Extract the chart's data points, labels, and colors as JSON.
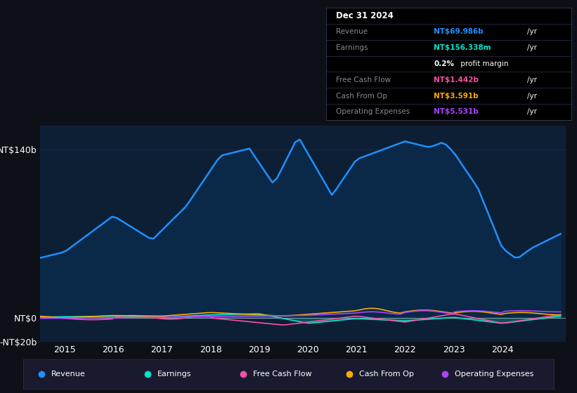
{
  "bg_color": "#0d1117",
  "plot_bg_color": "#0d1f35",
  "grid_color": "#1e3a5f",
  "ylabel_top": "NT$140b",
  "ylabel_zero": "NT$0",
  "ylabel_neg": "-NT$20b",
  "ylim": [
    -20,
    160
  ],
  "yticks": [
    -20,
    0,
    140
  ],
  "series": {
    "Revenue": {
      "color": "#1e90ff",
      "fill_color": "#0a2a4a",
      "linewidth": 1.8
    },
    "Earnings": {
      "color": "#00e5cc",
      "linewidth": 1.2
    },
    "Free Cash Flow": {
      "color": "#ff4da6",
      "linewidth": 1.2
    },
    "Cash From Op": {
      "color": "#ffaa00",
      "linewidth": 1.2
    },
    "Operating Expenses": {
      "color": "#aa44ff",
      "linewidth": 1.2
    }
  },
  "legend_items": [
    {
      "label": "Revenue",
      "color": "#1e90ff"
    },
    {
      "label": "Earnings",
      "color": "#00e5cc"
    },
    {
      "label": "Free Cash Flow",
      "color": "#ff4da6"
    },
    {
      "label": "Cash From Op",
      "color": "#ffaa00"
    },
    {
      "label": "Operating Expenses",
      "color": "#aa44ff"
    }
  ],
  "table_rows": [
    {
      "label": "Dec 31 2024",
      "value": null,
      "value_color": null,
      "suffix": null,
      "is_title": true
    },
    {
      "label": "Revenue",
      "value": "NT$69.986b",
      "value_color": "#1e90ff",
      "suffix": "/yr",
      "is_title": false
    },
    {
      "label": "Earnings",
      "value": "NT$156.338m",
      "value_color": "#00e5cc",
      "suffix": "/yr",
      "is_title": false
    },
    {
      "label": "",
      "value": "0.2%",
      "value_color": "white",
      "suffix": " profit margin",
      "is_title": false,
      "bold_value": true
    },
    {
      "label": "Free Cash Flow",
      "value": "NT$1.442b",
      "value_color": "#ff4da6",
      "suffix": "/yr",
      "is_title": false
    },
    {
      "label": "Cash From Op",
      "value": "NT$3.591b",
      "value_color": "#ffaa00",
      "suffix": "/yr",
      "is_title": false
    },
    {
      "label": "Operating Expenses",
      "value": "NT$5.531b",
      "value_color": "#aa44ff",
      "suffix": "/yr",
      "is_title": false
    }
  ]
}
